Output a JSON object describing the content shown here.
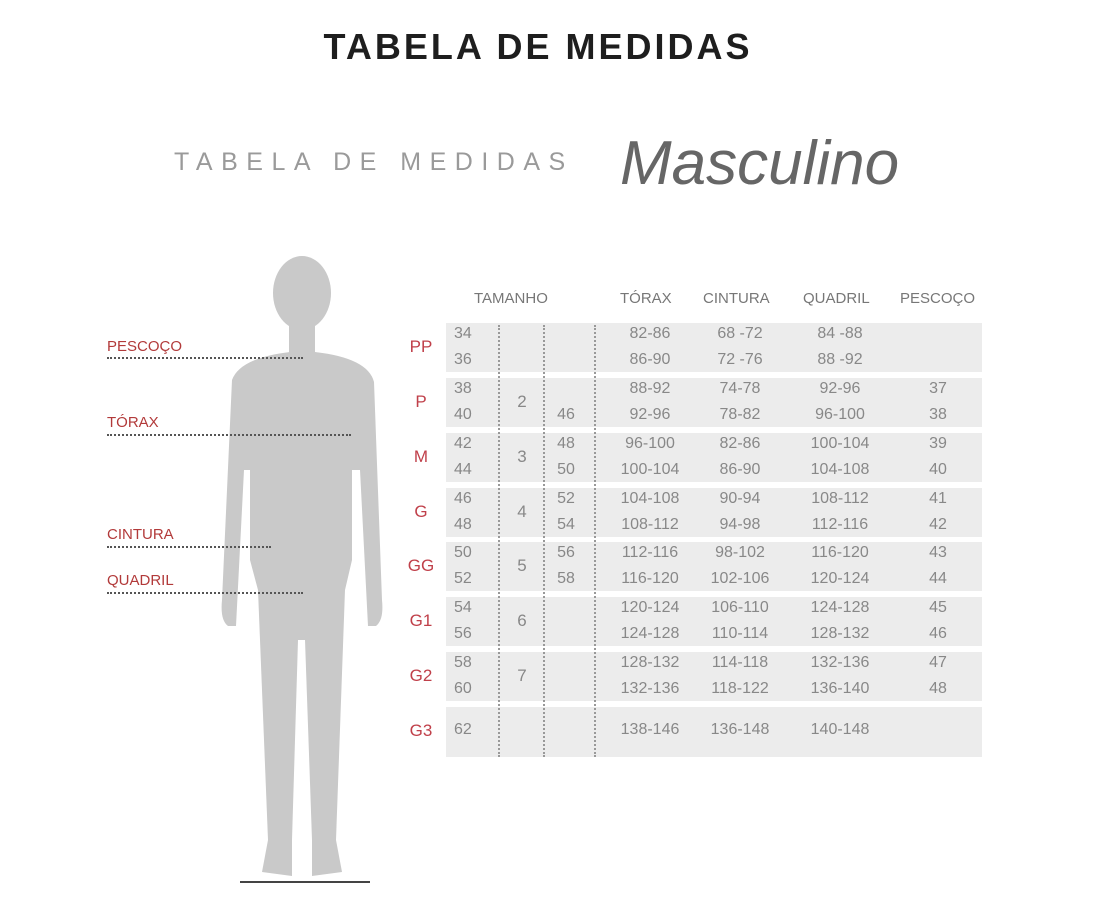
{
  "title": "TABELA DE MEDIDAS",
  "subtitle": "TABELA DE MEDIDAS",
  "subtitle_gender": "Masculino",
  "colors": {
    "accent": "#c0404a",
    "silhouette": "#c9c9c9",
    "band": "#ececec",
    "text": "#888888"
  },
  "body_labels": [
    "PESCOÇO",
    "TÓRAX",
    "CINTURA",
    "QUADRIL"
  ],
  "headers": {
    "tamanho": "TAMANHO",
    "torax": "TÓRAX",
    "cintura": "CINTURA",
    "quadril": "QUADRIL",
    "pescoco": "PESCOÇO"
  },
  "groups": [
    {
      "size": "PP",
      "num": "",
      "rows": [
        [
          "34",
          "",
          "82-86",
          "68 -72",
          "84 -88",
          ""
        ],
        [
          "36",
          "",
          "86-90",
          "72 -76",
          "88 -92",
          ""
        ]
      ]
    },
    {
      "size": "P",
      "num": "2",
      "rows": [
        [
          "38",
          "",
          "88-92",
          "74-78",
          "92-96",
          "37"
        ],
        [
          "40",
          "46",
          "92-96",
          "78-82",
          "96-100",
          "38"
        ]
      ]
    },
    {
      "size": "M",
      "num": "3",
      "rows": [
        [
          "42",
          "48",
          "96-100",
          "82-86",
          "100-104",
          "39"
        ],
        [
          "44",
          "50",
          "100-104",
          "86-90",
          "104-108",
          "40"
        ]
      ]
    },
    {
      "size": "G",
      "num": "4",
      "rows": [
        [
          "46",
          "52",
          "104-108",
          "90-94",
          "108-112",
          "41"
        ],
        [
          "48",
          "54",
          "108-112",
          "94-98",
          "112-116",
          "42"
        ]
      ]
    },
    {
      "size": "GG",
      "num": "5",
      "rows": [
        [
          "50",
          "56",
          "112-116",
          "98-102",
          "116-120",
          "43"
        ],
        [
          "52",
          "58",
          "116-120",
          "102-106",
          "120-124",
          "44"
        ]
      ]
    },
    {
      "size": "G1",
      "num": "6",
      "rows": [
        [
          "54",
          "",
          "120-124",
          "106-110",
          "124-128",
          "45"
        ],
        [
          "56",
          "",
          "124-128",
          "110-114",
          "128-132",
          "46"
        ]
      ]
    },
    {
      "size": "G2",
      "num": "7",
      "rows": [
        [
          "58",
          "",
          "128-132",
          "114-118",
          "132-136",
          "47"
        ],
        [
          "60",
          "",
          "132-136",
          "118-122",
          "136-140",
          "48"
        ]
      ]
    },
    {
      "size": "G3",
      "num": "",
      "rows": [
        [
          "62",
          "",
          "138-146",
          "136-148",
          "140-148",
          ""
        ]
      ]
    }
  ]
}
